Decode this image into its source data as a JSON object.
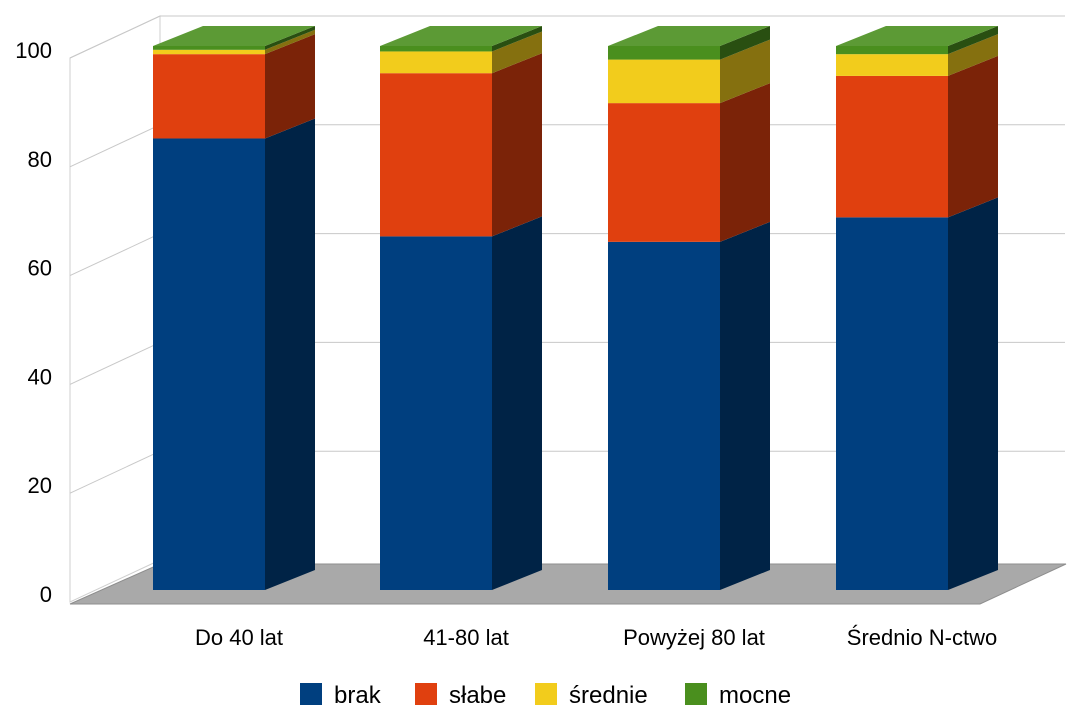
{
  "chart_data": {
    "type": "bar",
    "stacked": true,
    "style": "3d",
    "categories": [
      "Do 40 lat",
      "41-80 lat",
      "Powyżej 80 lat",
      "Średnio N-ctwo"
    ],
    "series": [
      {
        "name": "brak",
        "color": "#003f7f",
        "values": [
          83,
          65,
          64,
          68.5
        ]
      },
      {
        "name": "słabe",
        "color": "#e0400f",
        "values": [
          15.5,
          30,
          25.5,
          26
        ]
      },
      {
        "name": "średnie",
        "color": "#f2cc1c",
        "values": [
          0.8,
          4,
          8,
          4
        ]
      },
      {
        "name": "mocne",
        "color": "#4a8f1e",
        "values": [
          0.7,
          1,
          2.5,
          1.5
        ]
      }
    ],
    "yticks": [
      0,
      20,
      40,
      60,
      80,
      100
    ],
    "ylim": [
      0,
      100
    ],
    "grid": true,
    "legend": "bottom"
  }
}
